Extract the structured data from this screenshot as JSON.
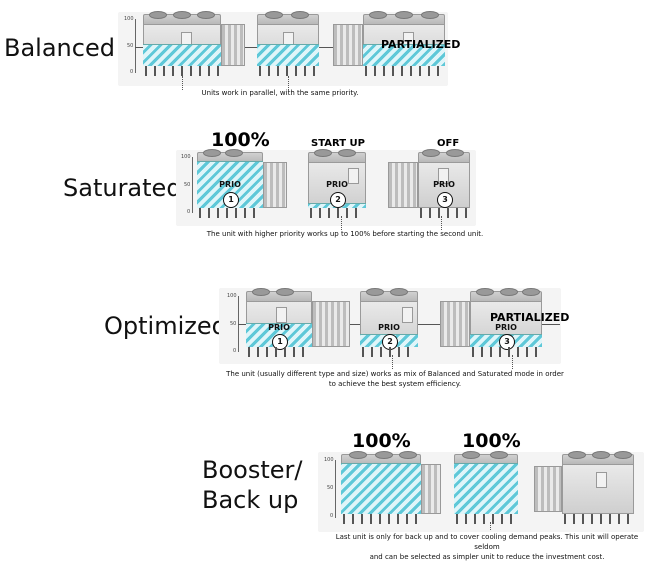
{
  "sections": [
    {
      "title": "Balanced",
      "axis": {
        "ticks": [
          "100",
          "50",
          "0"
        ]
      },
      "units": [
        {
          "fill_percent": 50,
          "prio": "",
          "order": "",
          "top_label": "",
          "overlay": ""
        },
        {
          "fill_percent": 50,
          "prio": "",
          "order": "",
          "top_label": "",
          "overlay": ""
        },
        {
          "fill_percent": 50,
          "prio": "",
          "order": "",
          "top_label": "",
          "overlay": "PARTIALIZED"
        }
      ],
      "caption": "Units work in parallel, with the same priority."
    },
    {
      "title": "Saturated",
      "axis": {
        "ticks": [
          "100",
          "50",
          "0"
        ]
      },
      "units": [
        {
          "fill_percent": 100,
          "prio": "PRIO",
          "order": "1",
          "top_label": "100%",
          "overlay": ""
        },
        {
          "fill_percent": 8,
          "prio": "PRIO",
          "order": "2",
          "top_label": "START UP",
          "overlay": ""
        },
        {
          "fill_percent": 0,
          "prio": "PRIO",
          "order": "3",
          "top_label": "OFF",
          "overlay": ""
        }
      ],
      "caption": "The unit with higher priority works up to 100% before starting the second unit."
    },
    {
      "title": "Optimized",
      "axis": {
        "ticks": [
          "100",
          "50",
          "0"
        ]
      },
      "units": [
        {
          "fill_percent": 50,
          "prio": "PRIO",
          "order": "1",
          "top_label": "",
          "overlay": ""
        },
        {
          "fill_percent": 25,
          "prio": "PRIO",
          "order": "2",
          "top_label": "",
          "overlay": ""
        },
        {
          "fill_percent": 25,
          "prio": "PRIO",
          "order": "3",
          "top_label": "",
          "overlay": "PARTIALIZED"
        }
      ],
      "caption_lines": [
        "The unit (usually different type and size) works as mix of Balanced and Saturated mode in order",
        "to achieve the best system efficiency."
      ]
    },
    {
      "title_lines": [
        "Booster/",
        "Back up"
      ],
      "axis": {
        "ticks": [
          "100",
          "50",
          "0"
        ]
      },
      "units": [
        {
          "fill_percent": 100,
          "prio": "",
          "order": "",
          "top_label": "100%",
          "overlay": ""
        },
        {
          "fill_percent": 100,
          "prio": "",
          "order": "",
          "top_label": "100%",
          "overlay": ""
        },
        {
          "fill_percent": 0,
          "prio": "",
          "order": "",
          "top_label": "",
          "overlay": ""
        }
      ],
      "caption_lines": [
        "Last unit is only for back up and to cover cooling demand peaks. This unit will operate seldom",
        "and can be selected as simpler unit to reduce the investment cost."
      ]
    }
  ],
  "colors": {
    "fill": "#5ec8d8",
    "unit": "#d6d6d6",
    "text": "#111111"
  }
}
